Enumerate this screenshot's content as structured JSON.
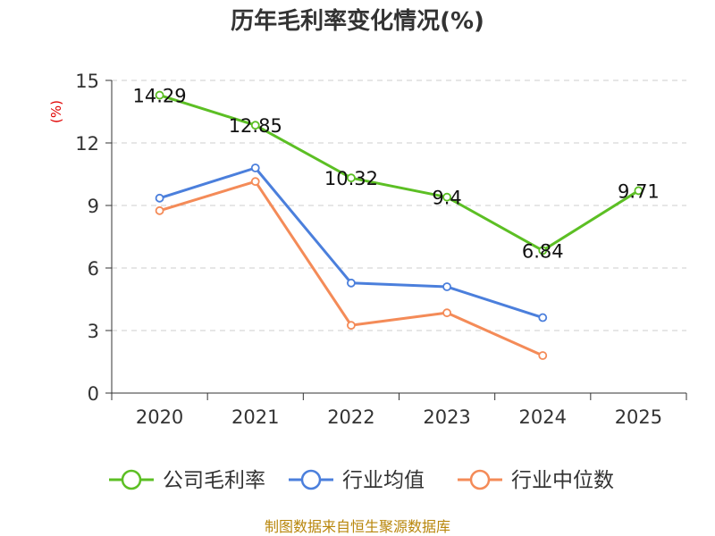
{
  "chart_data": {
    "type": "line",
    "title": "历年毛利率变化情况(%)",
    "ylabel": "(%)",
    "xlabel": "",
    "categories": [
      "2020",
      "2021",
      "2022",
      "2023",
      "2024",
      "2025"
    ],
    "ylim": [
      0,
      15
    ],
    "yticks": [
      0,
      3,
      6,
      9,
      12,
      15
    ],
    "grid": true,
    "legend_position": "bottom",
    "series": [
      {
        "name": "公司毛利率",
        "color": "#5cbf24",
        "values": [
          14.29,
          12.85,
          10.32,
          9.4,
          6.84,
          9.71
        ],
        "labels": [
          "14.29",
          "12.85",
          "10.32",
          "9.4",
          "6.84",
          "9.71"
        ]
      },
      {
        "name": "行业均值",
        "color": "#4b7fdc",
        "values": [
          9.35,
          10.8,
          5.28,
          5.1,
          3.62,
          null
        ]
      },
      {
        "name": "行业中位数",
        "color": "#f48b58",
        "values": [
          8.75,
          10.15,
          3.25,
          3.85,
          1.8,
          null
        ]
      }
    ]
  },
  "source": "制图数据来自恒生聚源数据库"
}
